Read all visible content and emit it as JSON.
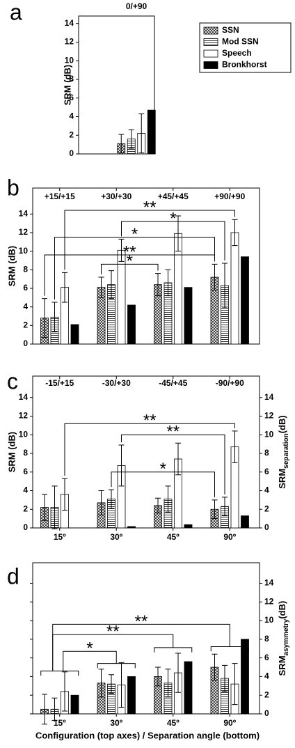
{
  "chart_data": [
    {
      "type": "bar",
      "panel": "a",
      "categories": [
        "0/+90"
      ],
      "ylabel": "SRM (dB)",
      "ylim": [
        0,
        14.8
      ],
      "yticks": [
        0,
        2,
        4,
        6,
        8,
        10,
        12,
        14
      ],
      "series": [
        {
          "name": "SSN",
          "fill": "crosshatch",
          "values": [
            1.1
          ],
          "errors": [
            1.0
          ]
        },
        {
          "name": "Mod SSN",
          "fill": "hlines",
          "values": [
            1.6
          ],
          "errors": [
            1.0
          ]
        },
        {
          "name": "Speech",
          "fill": "none",
          "values": [
            2.2
          ],
          "errors": [
            2.1
          ]
        },
        {
          "name": "Bronkhorst",
          "fill": "solid",
          "values": [
            4.7
          ]
        }
      ],
      "legend": "top-right"
    },
    {
      "type": "bar",
      "panel": "b",
      "categories": [
        "+15/+15",
        "+30/+30",
        "+45/+45",
        "+90/+90"
      ],
      "ylabel": "SRM (dB)",
      "ylim": [
        0,
        16.8
      ],
      "yticks": [
        0,
        2,
        4,
        6,
        8,
        10,
        12,
        14
      ],
      "series": [
        {
          "fill": "crosshatch",
          "values": [
            2.8,
            6.1,
            6.4,
            7.2
          ],
          "errors": [
            2.1,
            1.1,
            1.2,
            1.4
          ]
        },
        {
          "fill": "hlines",
          "values": [
            2.9,
            6.4,
            6.6,
            6.3
          ],
          "errors": [
            1.6,
            1.5,
            1.4,
            2.4
          ]
        },
        {
          "fill": "none",
          "values": [
            6.1,
            10.1,
            11.9,
            12.0
          ],
          "errors": [
            1.6,
            1.2,
            1.9,
            1.4
          ]
        },
        {
          "fill": "solid",
          "values": [
            2.1,
            4.2,
            6.1,
            9.4
          ]
        }
      ],
      "significance": [
        "**",
        "*",
        "*",
        "**",
        "*"
      ]
    },
    {
      "type": "bar",
      "panel": "c",
      "categories": [
        "-15/+15",
        "-30/+30",
        "-45/+45",
        "-90/+90"
      ],
      "categories_bottom": [
        "15º",
        "30º",
        "45º",
        "90º"
      ],
      "ylabel": "SRM (dB)",
      "y2label": [
        "SRM",
        "separation",
        "(dB)"
      ],
      "ylim": [
        0,
        16.3
      ],
      "yticks": [
        0,
        2,
        4,
        6,
        8,
        10,
        12,
        14
      ],
      "y2lim": [
        0,
        16.3
      ],
      "y2ticks": [
        0,
        2,
        4,
        6,
        8,
        10,
        12,
        14
      ],
      "series": [
        {
          "fill": "crosshatch",
          "values": [
            2.2,
            2.7,
            2.4,
            2.0
          ],
          "errors": [
            1.4,
            1.3,
            0.8,
            1.0
          ]
        },
        {
          "fill": "hlines",
          "values": [
            2.2,
            3.1,
            3.1,
            2.3
          ],
          "errors": [
            2.3,
            1.0,
            1.4,
            1.0
          ]
        },
        {
          "fill": "none",
          "values": [
            3.6,
            6.7,
            7.4,
            8.7
          ],
          "errors": [
            1.7,
            2.2,
            1.7,
            1.7
          ]
        },
        {
          "fill": "solid",
          "axis": "y2",
          "values": [
            0,
            0.15,
            0.35,
            1.3
          ]
        }
      ],
      "significance": [
        "**",
        "**",
        "*"
      ]
    },
    {
      "type": "bar",
      "panel": "d",
      "categories": [
        "15º",
        "30º",
        "45º",
        "90º"
      ],
      "y2label": [
        "SRM",
        "asymmetry",
        "(dB)"
      ],
      "xlabel": "Configuration (top axes) / Separation angle (bottom)",
      "y2lim": [
        0,
        16.2
      ],
      "y2ticks": [
        0,
        2,
        4,
        6,
        8,
        10,
        12,
        14
      ],
      "series": [
        {
          "fill": "crosshatch",
          "axis": "y2",
          "values": [
            0.5,
            3.3,
            4.0,
            5.0
          ],
          "errors": [
            1.6,
            1.5,
            1.0,
            1.4
          ]
        },
        {
          "fill": "hlines",
          "axis": "y2",
          "values": [
            0.5,
            3.2,
            3.3,
            3.8
          ],
          "errors": [
            1.2,
            1.0,
            1.5,
            1.4
          ]
        },
        {
          "fill": "none",
          "axis": "y2",
          "values": [
            2.4,
            3.1,
            4.4,
            3.2
          ],
          "errors": [
            2.1,
            2.4,
            2.1,
            2.2
          ]
        },
        {
          "fill": "solid",
          "axis": "y2",
          "values": [
            2.0,
            4.0,
            5.6,
            8.0
          ]
        }
      ],
      "significance": [
        "*",
        "**",
        "**"
      ]
    }
  ]
}
